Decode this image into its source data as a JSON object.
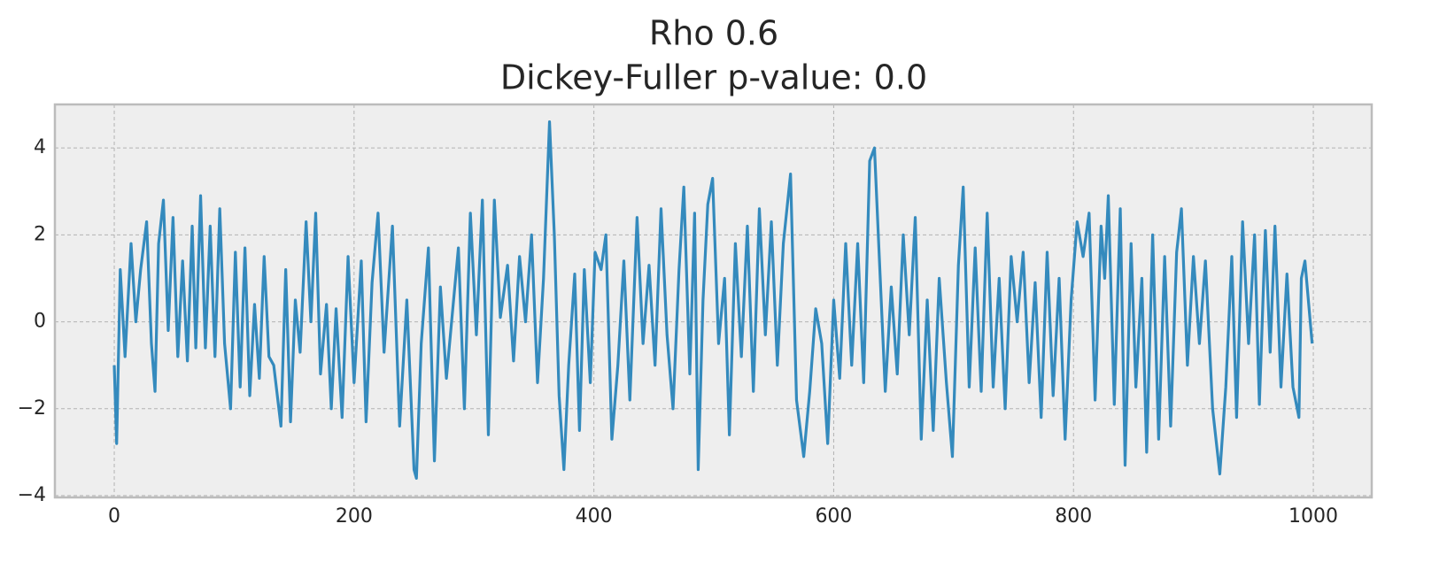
{
  "chart_data": {
    "type": "line",
    "title": "Rho 0.6",
    "subtitle": "Dickey-Fuller p-value: 0.0",
    "color": "#348ABD",
    "grid": true,
    "xlim": [
      -49.5,
      1048.7
    ],
    "ylim": [
      -4.04,
      5.0
    ],
    "xticks": [
      0,
      200,
      400,
      600,
      800,
      1000
    ],
    "yticks": [
      {
        "value": -4,
        "label": "−4"
      },
      {
        "value": -2,
        "label": "−2"
      },
      0,
      2,
      4
    ],
    "x": [
      0,
      2,
      5,
      9,
      14,
      18,
      22,
      27,
      31,
      34,
      37,
      41,
      45,
      49,
      53,
      57,
      61,
      65,
      68,
      72,
      76,
      80,
      84,
      88,
      92,
      97,
      101,
      105,
      109,
      113,
      117,
      121,
      125,
      129,
      133,
      139,
      143,
      147,
      151,
      155,
      160,
      164,
      168,
      172,
      177,
      181,
      185,
      190,
      195,
      200,
      206,
      210,
      215,
      220,
      225,
      232,
      238,
      244,
      250,
      252,
      256,
      262,
      267,
      272,
      277,
      282,
      287,
      292,
      297,
      302,
      307,
      312,
      317,
      322,
      328,
      333,
      338,
      343,
      348,
      353,
      358,
      363,
      367,
      371,
      375,
      379,
      384,
      388,
      392,
      397,
      401,
      406,
      410,
      415,
      420,
      425,
      430,
      436,
      441,
      446,
      451,
      456,
      461,
      466,
      471,
      475,
      480,
      484,
      487,
      491,
      495,
      499,
      504,
      509,
      513,
      518,
      523,
      528,
      533,
      538,
      543,
      548,
      553,
      558,
      564,
      569,
      575,
      580,
      585,
      590,
      595,
      600,
      605,
      610,
      615,
      620,
      625,
      630,
      634,
      638,
      643,
      648,
      653,
      658,
      663,
      668,
      673,
      678,
      683,
      688,
      694,
      699,
      704,
      708,
      713,
      718,
      723,
      728,
      733,
      738,
      743,
      748,
      753,
      758,
      763,
      768,
      773,
      778,
      783,
      788,
      793,
      798,
      803,
      808,
      813,
      818,
      823,
      826,
      829,
      834,
      839,
      843,
      848,
      852,
      857,
      861,
      866,
      871,
      876,
      881,
      886,
      890,
      895,
      900,
      905,
      910,
      916,
      922,
      927,
      932,
      936,
      941,
      946,
      951,
      955,
      960,
      964,
      968,
      973,
      978,
      983,
      988,
      990,
      993,
      999
    ],
    "values": [
      -1.0,
      -2.8,
      1.2,
      -0.8,
      1.8,
      0.0,
      1.2,
      2.3,
      -0.5,
      -1.6,
      1.8,
      2.8,
      -0.2,
      2.4,
      -0.8,
      1.4,
      -0.9,
      2.2,
      -0.6,
      2.9,
      -0.6,
      2.2,
      -0.8,
      2.6,
      -0.5,
      -2.0,
      1.6,
      -1.5,
      1.7,
      -1.7,
      0.4,
      -1.3,
      1.5,
      -0.8,
      -1.0,
      -2.4,
      1.2,
      -2.3,
      0.5,
      -0.7,
      2.3,
      0.0,
      2.5,
      -1.2,
      0.4,
      -2.0,
      0.3,
      -2.2,
      1.5,
      -1.4,
      1.4,
      -2.3,
      0.9,
      2.5,
      -0.7,
      2.2,
      -2.4,
      0.5,
      -3.4,
      -3.6,
      -0.5,
      1.7,
      -3.2,
      0.8,
      -1.3,
      0.2,
      1.7,
      -2.0,
      2.5,
      -0.3,
      2.8,
      -2.6,
      2.8,
      0.1,
      1.3,
      -0.9,
      1.5,
      0.0,
      2.0,
      -1.4,
      1.0,
      4.6,
      2.0,
      -1.7,
      -3.4,
      -1.0,
      1.1,
      -2.5,
      1.2,
      -1.4,
      1.6,
      1.2,
      2.0,
      -2.7,
      -1.0,
      1.4,
      -1.8,
      2.4,
      -0.5,
      1.3,
      -1.0,
      2.6,
      -0.3,
      -2.0,
      1.2,
      3.1,
      -1.2,
      2.5,
      -3.4,
      0.5,
      2.7,
      3.3,
      -0.5,
      1.0,
      -2.6,
      1.8,
      -0.8,
      2.2,
      -1.6,
      2.6,
      -0.3,
      2.3,
      -1.0,
      1.8,
      3.4,
      -1.8,
      -3.1,
      -1.6,
      0.3,
      -0.5,
      -2.8,
      0.5,
      -1.3,
      1.8,
      -1.0,
      1.8,
      -1.4,
      3.7,
      4.0,
      1.5,
      -1.6,
      0.8,
      -1.2,
      2.0,
      -0.3,
      2.4,
      -2.7,
      0.5,
      -2.5,
      1.0,
      -1.4,
      -3.1,
      1.3,
      3.1,
      -1.5,
      1.7,
      -1.6,
      2.5,
      -1.5,
      1.0,
      -2.0,
      1.5,
      0.0,
      1.6,
      -1.4,
      0.9,
      -2.2,
      1.6,
      -1.7,
      1.0,
      -2.7,
      0.5,
      2.3,
      1.5,
      2.5,
      -1.8,
      2.2,
      1.0,
      2.9,
      -1.9,
      2.6,
      -3.3,
      1.8,
      -1.5,
      1.0,
      -3.0,
      2.0,
      -2.7,
      1.5,
      -2.4,
      1.6,
      2.6,
      -1.0,
      1.5,
      -0.5,
      1.4,
      -2.0,
      -3.5,
      -1.5,
      1.5,
      -2.2,
      2.3,
      -0.5,
      2.0,
      -1.9,
      2.1,
      -0.7,
      2.2,
      -1.5,
      1.1,
      -1.5,
      -2.2,
      1.0,
      1.4,
      -0.5
    ]
  }
}
